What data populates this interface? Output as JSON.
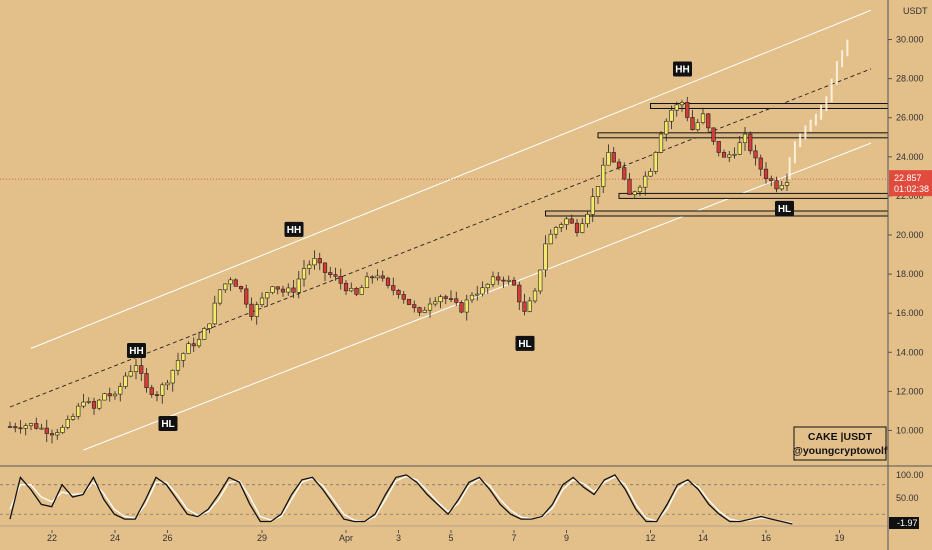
{
  "chart_data": {
    "type": "candlestick",
    "symbol": "CAKE",
    "quote": "USDT",
    "watermark": {
      "line1": "CAKE |USDT",
      "line2": "@youngcryptowolf"
    },
    "y_axis": {
      "unit": "USDT",
      "ylim": [
        9.0,
        31.0
      ],
      "ticks": [
        "30.000",
        "28.000",
        "26.000",
        "24.000",
        "22.000",
        "20.000",
        "18.000",
        "16.000",
        "14.000",
        "12.000",
        "10.000"
      ]
    },
    "x_axis": {
      "day_range": [
        0,
        79
      ],
      "ticks": [
        {
          "label": "22",
          "day": 4
        },
        {
          "label": "24",
          "day": 10
        },
        {
          "label": "26",
          "day": 15
        },
        {
          "label": "29",
          "day": 24
        },
        {
          "label": "Apr",
          "day": 32
        },
        {
          "label": "3",
          "day": 37
        },
        {
          "label": "5",
          "day": 42
        },
        {
          "label": "7",
          "day": 48
        },
        {
          "label": "9",
          "day": 53
        },
        {
          "label": "12",
          "day": 61
        },
        {
          "label": "14",
          "day": 66
        },
        {
          "label": "16",
          "day": 72
        },
        {
          "label": "19",
          "day": 79
        }
      ]
    },
    "last_price": {
      "value": 22.857,
      "label": "22.857",
      "countdown": "01:02:38"
    },
    "price_path": [
      [
        0,
        10.2
      ],
      [
        2,
        10.3
      ],
      [
        4,
        9.9
      ],
      [
        5,
        10.1
      ],
      [
        6,
        10.7
      ],
      [
        7,
        11.6
      ],
      [
        8,
        11.1
      ],
      [
        9,
        11.9
      ],
      [
        10,
        11.7
      ],
      [
        11,
        12.8
      ],
      [
        12,
        13.4
      ],
      [
        13,
        12.1
      ],
      [
        14,
        11.9
      ],
      [
        15,
        12.6
      ],
      [
        16,
        13.6
      ],
      [
        17,
        14.3
      ],
      [
        18,
        14.6
      ],
      [
        19,
        15.6
      ],
      [
        20,
        17.2
      ],
      [
        21,
        17.8
      ],
      [
        22,
        17.2
      ],
      [
        23,
        16.0
      ],
      [
        24,
        16.7
      ],
      [
        25,
        17.5
      ],
      [
        26,
        17.1
      ],
      [
        27,
        17.2
      ],
      [
        28,
        18.3
      ],
      [
        29,
        18.7
      ],
      [
        30,
        18.1
      ],
      [
        31,
        17.8
      ],
      [
        32,
        17.3
      ],
      [
        33,
        16.9
      ],
      [
        34,
        17.7
      ],
      [
        35,
        18.0
      ],
      [
        36,
        17.3
      ],
      [
        37,
        17.1
      ],
      [
        38,
        16.5
      ],
      [
        39,
        15.9
      ],
      [
        40,
        16.6
      ],
      [
        41,
        16.9
      ],
      [
        42,
        16.6
      ],
      [
        43,
        16.2
      ],
      [
        44,
        17.0
      ],
      [
        45,
        17.2
      ],
      [
        46,
        17.7
      ],
      [
        47,
        17.8
      ],
      [
        48,
        17.4
      ],
      [
        49,
        16.0
      ],
      [
        50,
        17.0
      ],
      [
        51,
        19.6
      ],
      [
        52,
        20.4
      ],
      [
        53,
        20.8
      ],
      [
        54,
        20.3
      ],
      [
        55,
        21.2
      ],
      [
        56,
        22.6
      ],
      [
        57,
        24.2
      ],
      [
        58,
        23.4
      ],
      [
        59,
        22.0
      ],
      [
        60,
        22.6
      ],
      [
        61,
        23.4
      ],
      [
        62,
        25.3
      ],
      [
        63,
        26.4
      ],
      [
        64,
        26.8
      ],
      [
        65,
        25.4
      ],
      [
        66,
        26.1
      ],
      [
        67,
        24.7
      ],
      [
        68,
        23.9
      ],
      [
        69,
        24.3
      ],
      [
        70,
        25.0
      ],
      [
        71,
        23.8
      ],
      [
        72,
        23.0
      ],
      [
        73,
        22.5
      ],
      [
        74,
        22.86
      ]
    ],
    "projection": [
      [
        74,
        22.86
      ],
      [
        75,
        24.5
      ],
      [
        76,
        25.3
      ],
      [
        77,
        25.9
      ],
      [
        78,
        26.8
      ],
      [
        79,
        28.6
      ],
      [
        80,
        29.7
      ]
    ],
    "channel": {
      "upper": [
        [
          2,
          14.2
        ],
        [
          82,
          31.5
        ]
      ],
      "mid": [
        [
          0,
          11.2
        ],
        [
          82,
          28.5
        ]
      ],
      "lower": [
        [
          7,
          9.0
        ],
        [
          82,
          24.7
        ]
      ]
    },
    "horizontal_levels": [
      {
        "price": 26.6,
        "from_day": 61
      },
      {
        "price": 25.1,
        "from_day": 56
      },
      {
        "price": 22.0,
        "from_day": 58
      },
      {
        "price": 21.1,
        "from_day": 51
      }
    ],
    "pivot_labels": [
      {
        "text": "HH",
        "day": 12,
        "price": 13.4,
        "position": "above"
      },
      {
        "text": "HL",
        "day": 15,
        "price": 11.3,
        "position": "below"
      },
      {
        "text": "HH",
        "day": 27,
        "price": 19.6,
        "position": "above"
      },
      {
        "text": "HL",
        "day": 49,
        "price": 15.4,
        "position": "below"
      },
      {
        "text": "HH",
        "day": 64,
        "price": 27.8,
        "position": "above"
      },
      {
        "text": "HL",
        "day": 72,
        "price": 21.9,
        "position": "below-right"
      }
    ],
    "oscillator": {
      "ylim": [
        0,
        110
      ],
      "ticks": [
        "100.00",
        "50.00"
      ],
      "current_label": "-1.97",
      "levels": [
        80,
        20
      ],
      "k": [
        10,
        95,
        70,
        40,
        35,
        80,
        55,
        60,
        95,
        50,
        20,
        10,
        10,
        50,
        95,
        80,
        50,
        20,
        15,
        30,
        60,
        95,
        85,
        40,
        5,
        5,
        20,
        60,
        90,
        95,
        70,
        40,
        10,
        5,
        5,
        20,
        60,
        95,
        100,
        85,
        60,
        40,
        20,
        50,
        85,
        95,
        70,
        40,
        20,
        10,
        10,
        15,
        40,
        80,
        95,
        75,
        60,
        90,
        100,
        70,
        30,
        5,
        5,
        40,
        80,
        90,
        70,
        40,
        20,
        5,
        5,
        10,
        15,
        10,
        5,
        0
      ],
      "d": [
        30,
        80,
        80,
        55,
        45,
        65,
        60,
        62,
        85,
        62,
        30,
        15,
        12,
        40,
        85,
        85,
        60,
        30,
        18,
        25,
        50,
        85,
        88,
        55,
        15,
        8,
        15,
        50,
        85,
        93,
        78,
        50,
        20,
        8,
        5,
        15,
        50,
        88,
        97,
        90,
        68,
        45,
        25,
        42,
        78,
        92,
        78,
        50,
        28,
        14,
        11,
        14,
        32,
        70,
        90,
        82,
        66,
        85,
        96,
        80,
        40,
        12,
        6,
        30,
        72,
        88,
        76,
        48,
        26,
        10,
        6,
        8,
        12,
        10,
        6,
        2
      ]
    }
  }
}
